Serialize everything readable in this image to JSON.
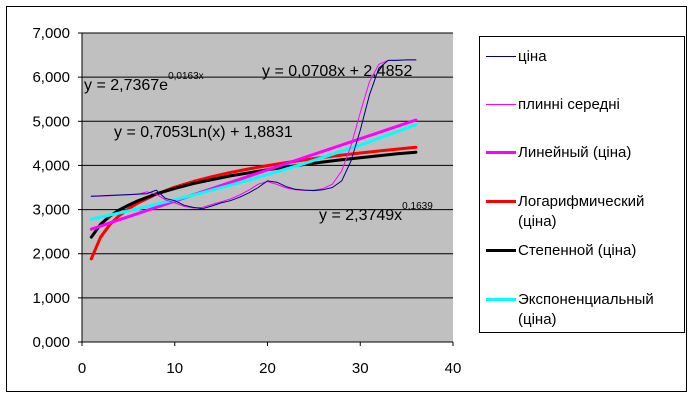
{
  "chart_data": {
    "type": "line",
    "xlim": [
      0,
      40
    ],
    "ylim": [
      0,
      7000
    ],
    "x_ticks": [
      "0",
      "10",
      "20",
      "30",
      "40"
    ],
    "y_ticks": [
      "0,000",
      "1,000",
      "2,000",
      "3,000",
      "4,000",
      "5,000",
      "6,000",
      "7,000"
    ],
    "plot_background": "#c0c0c0",
    "grid": "horizontal",
    "legend_position": "right",
    "series": [
      {
        "name": "ціна",
        "color": "#000080",
        "style": "thin",
        "x": [
          1,
          2,
          3,
          4,
          5,
          6,
          7,
          8,
          9,
          10,
          11,
          12,
          13,
          14,
          15,
          16,
          17,
          18,
          19,
          20,
          21,
          22,
          23,
          24,
          25,
          26,
          27,
          28,
          29,
          30,
          31,
          32,
          33,
          34,
          35,
          36
        ],
        "y": [
          3300,
          3310,
          3320,
          3330,
          3340,
          3350,
          3360,
          3440,
          3250,
          3200,
          3100,
          3050,
          3020,
          3080,
          3150,
          3200,
          3280,
          3380,
          3500,
          3650,
          3620,
          3520,
          3460,
          3440,
          3430,
          3450,
          3500,
          3650,
          4100,
          4800,
          5600,
          6200,
          6380,
          6380,
          6390,
          6390
        ]
      },
      {
        "name": "плинні середні",
        "color": "#ff00ff",
        "style": "thin",
        "x": [
          1,
          2,
          3,
          4,
          5,
          6,
          7,
          8,
          9,
          10,
          11,
          12,
          13,
          14,
          15,
          16,
          17,
          18,
          19,
          20,
          21,
          22,
          23,
          24,
          25,
          26,
          27,
          28,
          29,
          30,
          31,
          32,
          33,
          34,
          35,
          36
        ],
        "y": [
          3300,
          3305,
          3315,
          3325,
          3335,
          3345,
          3400,
          3350,
          3220,
          3150,
          3075,
          3035,
          3050,
          3115,
          3175,
          3240,
          3330,
          3440,
          3575,
          3635,
          3570,
          3490,
          3450,
          3435,
          3440,
          3475,
          3575,
          3875,
          4450,
          5200,
          5900,
          6290,
          6380,
          6385,
          6390,
          6390
        ]
      },
      {
        "name": "Линейный (ціна)",
        "color": "#ff00ff",
        "style": "thick",
        "x": [
          1,
          36
        ],
        "y": [
          2556,
          5030
        ]
      },
      {
        "name": "Логарифмический (ціна)",
        "color": "#ff0000",
        "style": "thick",
        "x": [
          1,
          2,
          3,
          4,
          5,
          6,
          8,
          10,
          12,
          14,
          16,
          18,
          20,
          22,
          24,
          26,
          28,
          30,
          32,
          34,
          36
        ],
        "y": [
          1883,
          2372,
          2658,
          2861,
          3018,
          3147,
          3350,
          3507,
          3636,
          3745,
          3839,
          3922,
          3996,
          4063,
          4125,
          4181,
          4233,
          4282,
          4327,
          4370,
          4410
        ]
      },
      {
        "name": "Степенной (ціна)",
        "color": "#000000",
        "style": "thick",
        "x": [
          1,
          2,
          3,
          4,
          5,
          6,
          8,
          10,
          12,
          14,
          16,
          18,
          20,
          22,
          24,
          26,
          28,
          30,
          32,
          34,
          36
        ],
        "y": [
          2375,
          2665,
          2850,
          2990,
          3100,
          3197,
          3355,
          3480,
          3591,
          3678,
          3762,
          3834,
          3904,
          3963,
          4024,
          4077,
          4128,
          4175,
          4220,
          4263,
          4300
        ]
      },
      {
        "name": "Экспоненциальный (ціна)",
        "color": "#00ffff",
        "style": "thick",
        "x": [
          1,
          6,
          12,
          18,
          24,
          30,
          36
        ],
        "y": [
          2781,
          3016,
          3326,
          3668,
          4045,
          4461,
          4920
        ]
      }
    ],
    "annotations": [
      {
        "base": "y = 2,7367e",
        "sup": "0,0163x"
      },
      {
        "base": "y = 0,0708x + 2,4852",
        "sup": ""
      },
      {
        "base": "y = 0,7053Ln(x) + 1,8831",
        "sup": ""
      },
      {
        "base": "y = 2,3749x",
        "sup": "0,1639"
      }
    ]
  },
  "legend": {
    "items": [
      {
        "label": "ціна",
        "color": "#000080"
      },
      {
        "label": "плинні середні",
        "color": "#ff00ff"
      },
      {
        "label": "Линейный (ціна)",
        "color": "#ff00ff"
      },
      {
        "label": "Логарифмический (ціна)",
        "color": "#ff0000"
      },
      {
        "label": "Степенной (ціна)",
        "color": "#000000"
      },
      {
        "label": "Экспоненциальный (ціна)",
        "color": "#00ffff"
      }
    ]
  }
}
